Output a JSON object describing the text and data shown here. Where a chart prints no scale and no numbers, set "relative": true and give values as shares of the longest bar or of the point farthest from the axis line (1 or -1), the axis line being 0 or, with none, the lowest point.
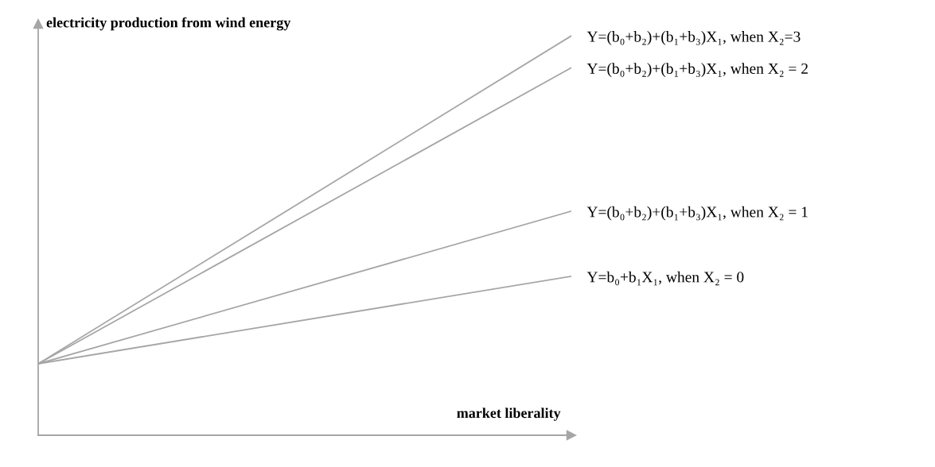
{
  "chart_data": {
    "type": "line",
    "relative": true,
    "xlabel": "market liberality",
    "ylabel": "electricity production from wind energy",
    "categories": [
      null,
      null
    ],
    "series": [
      {
        "name": "Y=(b₀+b₂)+(b₁+b₃)X₁, when X₂=3",
        "color": "#a6a6a6",
        "values": [
          0.179,
          1
        ]
      },
      {
        "name": "Y=(b₀+b₂)+(b₁+b₃)X₁, when X₂ = 2",
        "color": "#a6a6a6",
        "values": [
          0.179,
          0.92
        ]
      },
      {
        "name": "Y=(b₀+b₂)+(b₁+b₃)X₁, when X₂ = 1",
        "color": "#a6a6a6",
        "values": [
          0.179,
          0.561
        ]
      },
      {
        "name": "Y=b₀+b₁X₁, when X₂ = 0",
        "color": "#a6a6a6",
        "values": [
          0.179,
          0.398
        ]
      }
    ],
    "legend": false,
    "marker": "none",
    "line_style": "solid"
  }
}
